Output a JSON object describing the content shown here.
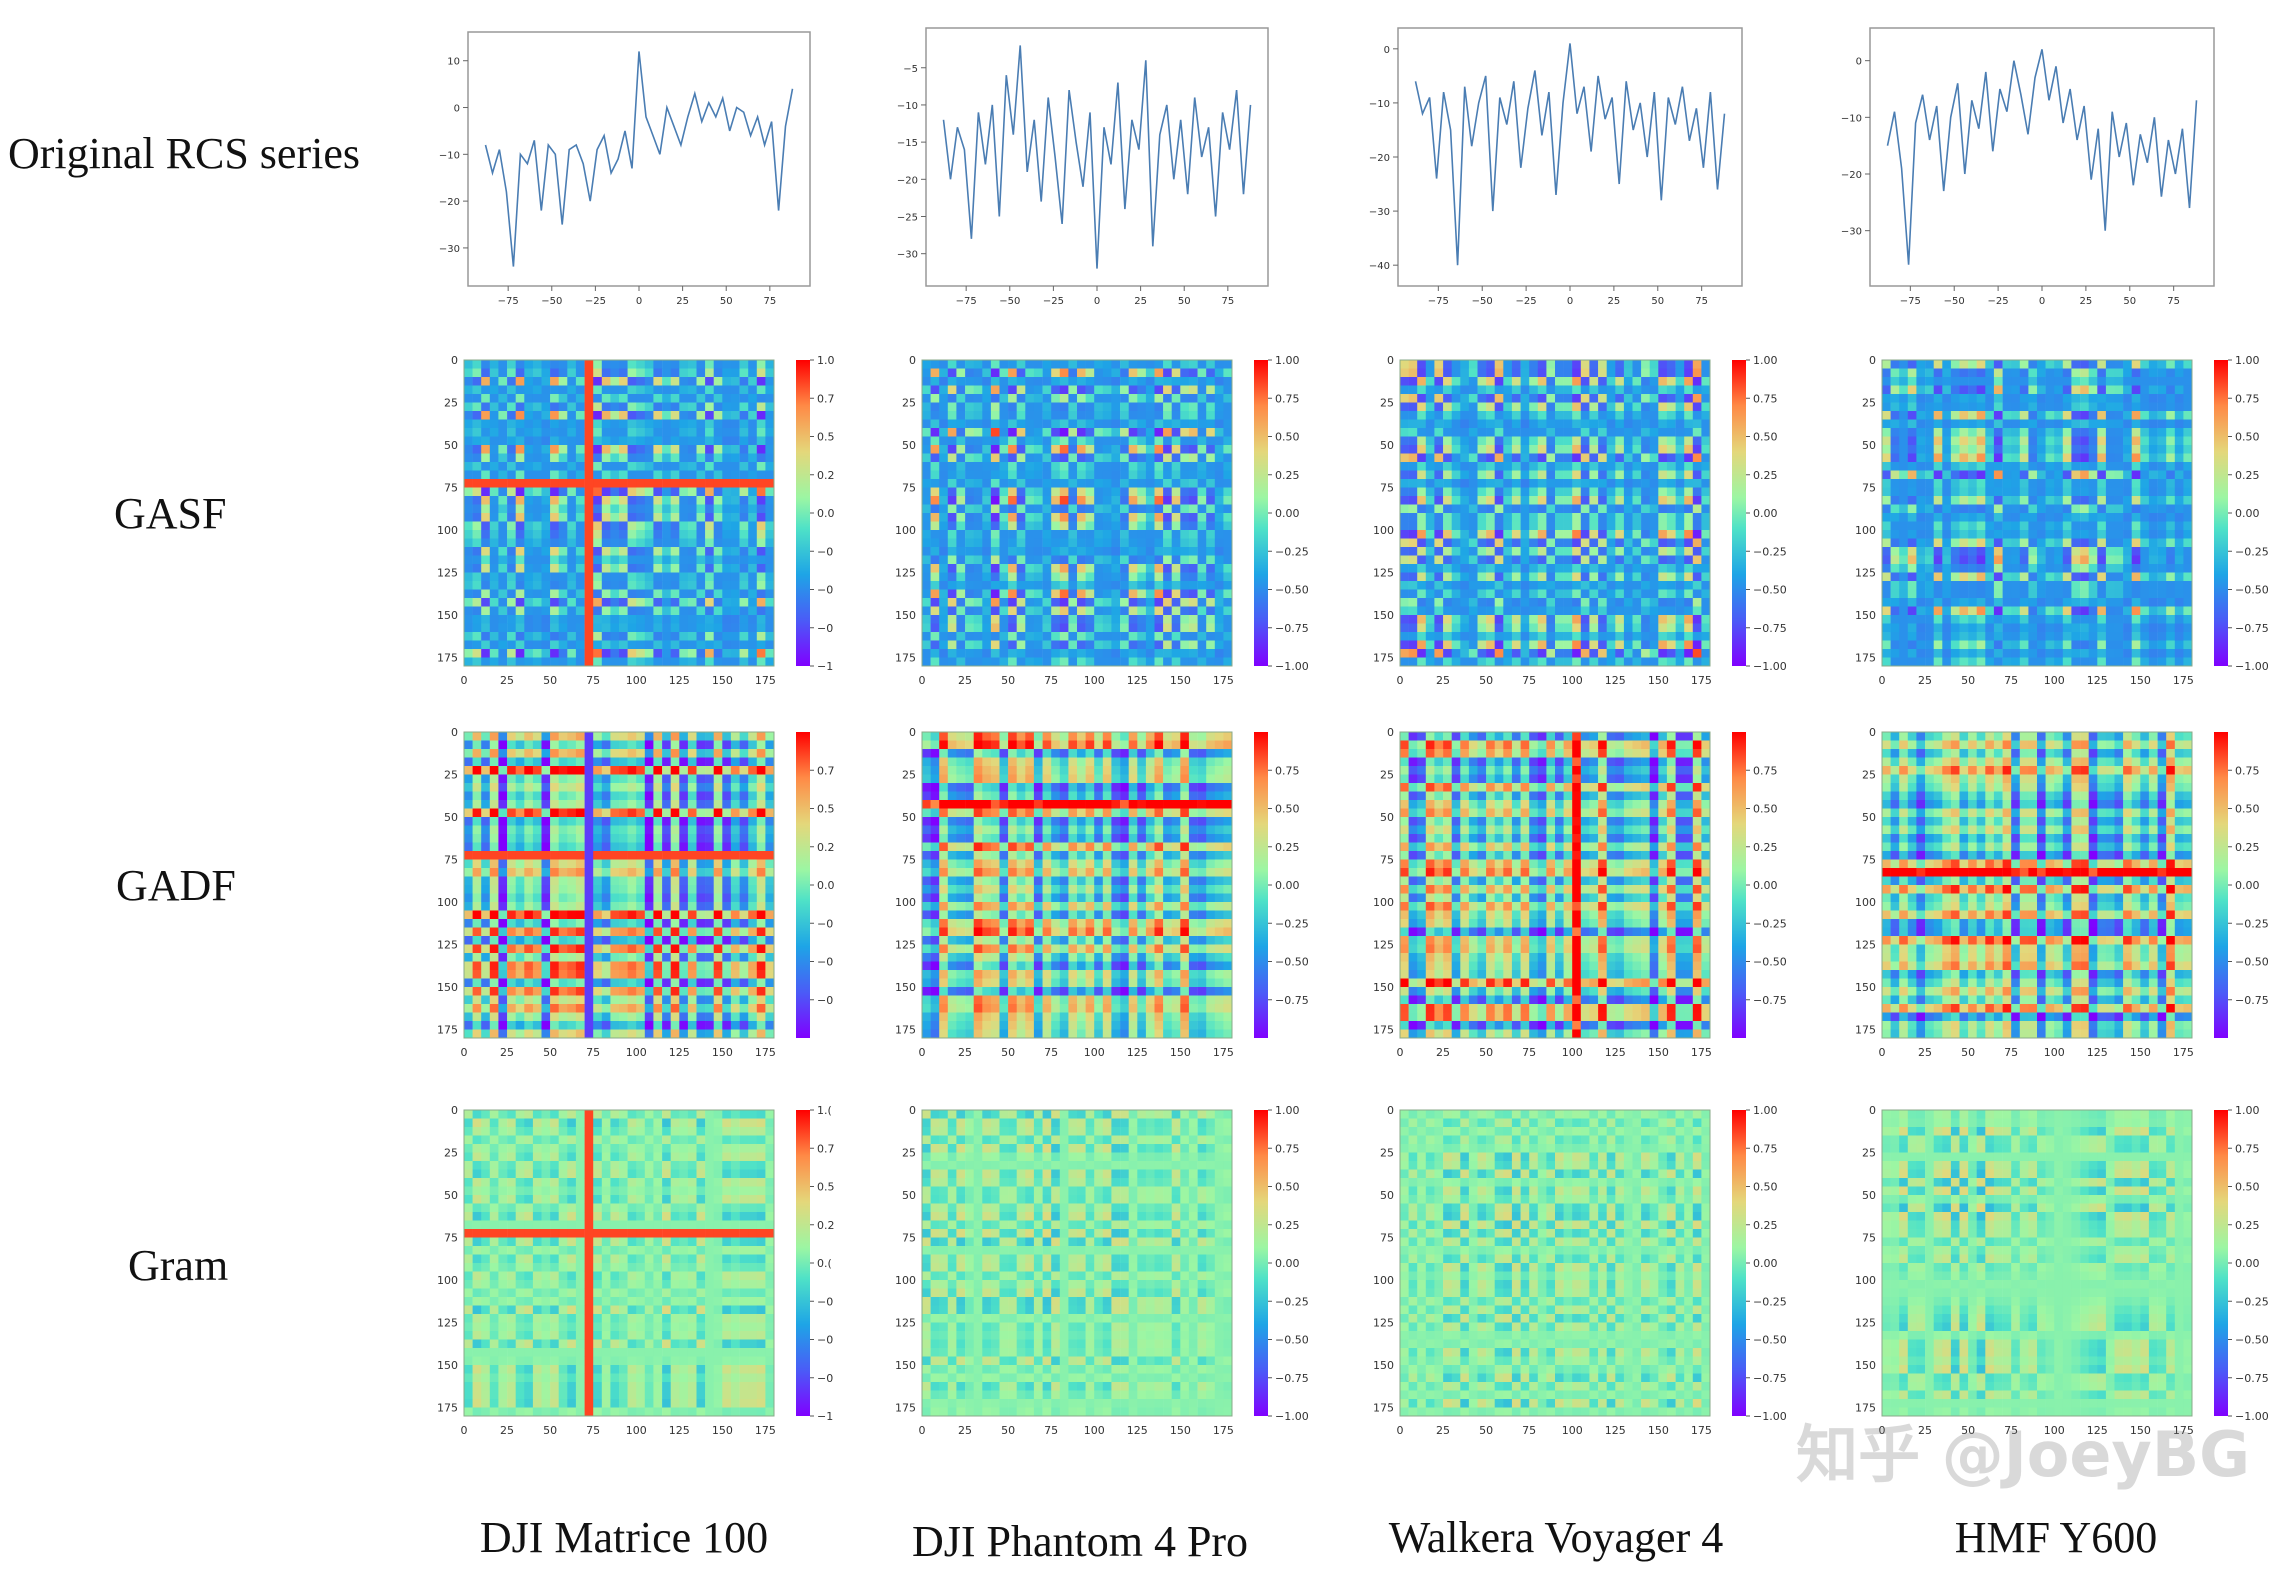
{
  "row_labels": [
    "Original RCS series",
    "GASF",
    "GADF",
    "Gram"
  ],
  "col_labels": [
    "DJI Matrice 100",
    "DJI Phantom 4 Pro",
    "Walkera Voyager 4",
    "HMF Y600"
  ],
  "watermark": "知乎 @JoeyBG",
  "colors": {
    "line": "#4a7db3",
    "colormap": "rainbow"
  },
  "chart_data": [
    {
      "type": "line",
      "row": "Original RCS series",
      "title": "",
      "xlabel": "",
      "ylabel": "",
      "panels": [
        {
          "name": "DJI Matrice 100",
          "xlim": [
            -90,
            90
          ],
          "xticks": [
            -75,
            -50,
            -25,
            0,
            25,
            50,
            75
          ],
          "yticks": [
            10,
            0,
            -10,
            -20,
            -30
          ],
          "ylim": [
            -36,
            14
          ],
          "x": [
            -88,
            -84,
            -80,
            -76,
            -72,
            -68,
            -64,
            -60,
            -56,
            -52,
            -48,
            -44,
            -40,
            -36,
            -32,
            -28,
            -24,
            -20,
            -16,
            -12,
            -8,
            -4,
            0,
            4,
            8,
            12,
            16,
            20,
            24,
            28,
            32,
            36,
            40,
            44,
            48,
            52,
            56,
            60,
            64,
            68,
            72,
            76,
            80,
            84,
            88
          ],
          "y": [
            -8,
            -14,
            -9,
            -18,
            -34,
            -10,
            -12,
            -7,
            -22,
            -8,
            -10,
            -25,
            -9,
            -8,
            -12,
            -20,
            -9,
            -6,
            -14,
            -11,
            -5,
            -13,
            12,
            -2,
            -6,
            -10,
            0,
            -4,
            -8,
            -2,
            3,
            -3,
            1,
            -2,
            2,
            -5,
            0,
            -1,
            -6,
            -2,
            -8,
            -3,
            -22,
            -4,
            4
          ]
        },
        {
          "name": "DJI Phantom 4 Pro",
          "xlim": [
            -90,
            90
          ],
          "xticks": [
            -75,
            -50,
            -25,
            0,
            25,
            50,
            75
          ],
          "yticks": [
            -5,
            -10,
            -15,
            -20,
            -25,
            -30
          ],
          "ylim": [
            -33,
            -1
          ],
          "x": [
            -88,
            -84,
            -80,
            -76,
            -72,
            -68,
            -64,
            -60,
            -56,
            -52,
            -48,
            -44,
            -40,
            -36,
            -32,
            -28,
            -24,
            -20,
            -16,
            -12,
            -8,
            -4,
            0,
            4,
            8,
            12,
            16,
            20,
            24,
            28,
            32,
            36,
            40,
            44,
            48,
            52,
            56,
            60,
            64,
            68,
            72,
            76,
            80,
            84,
            88
          ],
          "y": [
            -12,
            -20,
            -13,
            -16,
            -28,
            -11,
            -18,
            -10,
            -25,
            -6,
            -14,
            -2,
            -19,
            -12,
            -23,
            -9,
            -17,
            -26,
            -8,
            -15,
            -21,
            -11,
            -32,
            -13,
            -18,
            -7,
            -24,
            -12,
            -16,
            -4,
            -29,
            -14,
            -10,
            -20,
            -12,
            -22,
            -9,
            -17,
            -13,
            -25,
            -11,
            -16,
            -8,
            -22,
            -10
          ]
        },
        {
          "name": "Walkera Voyager 4",
          "xlim": [
            -90,
            90
          ],
          "xticks": [
            -75,
            -50,
            -25,
            0,
            25,
            50,
            75
          ],
          "yticks": [
            0,
            -10,
            -20,
            -30,
            -40
          ],
          "ylim": [
            -42,
            2
          ],
          "x": [
            -88,
            -84,
            -80,
            -76,
            -72,
            -68,
            -64,
            -60,
            -56,
            -52,
            -48,
            -44,
            -40,
            -36,
            -32,
            -28,
            -24,
            -20,
            -16,
            -12,
            -8,
            -4,
            0,
            4,
            8,
            12,
            16,
            20,
            24,
            28,
            32,
            36,
            40,
            44,
            48,
            52,
            56,
            60,
            64,
            68,
            72,
            76,
            80,
            84,
            88
          ],
          "y": [
            -6,
            -12,
            -9,
            -24,
            -8,
            -15,
            -40,
            -7,
            -18,
            -10,
            -5,
            -30,
            -9,
            -14,
            -6,
            -22,
            -11,
            -4,
            -16,
            -8,
            -27,
            -10,
            1,
            -12,
            -7,
            -19,
            -5,
            -13,
            -9,
            -25,
            -6,
            -15,
            -10,
            -20,
            -8,
            -28,
            -9,
            -14,
            -7,
            -17,
            -11,
            -22,
            -8,
            -26,
            -12
          ]
        },
        {
          "name": "HMF Y600",
          "xlim": [
            -90,
            90
          ],
          "xticks": [
            -75,
            -50,
            -25,
            0,
            25,
            50,
            75
          ],
          "yticks": [
            0,
            -10,
            -20,
            -30
          ],
          "ylim": [
            -38,
            4
          ],
          "x": [
            -88,
            -84,
            -80,
            -76,
            -72,
            -68,
            -64,
            -60,
            -56,
            -52,
            -48,
            -44,
            -40,
            -36,
            -32,
            -28,
            -24,
            -20,
            -16,
            -12,
            -8,
            -4,
            0,
            4,
            8,
            12,
            16,
            20,
            24,
            28,
            32,
            36,
            40,
            44,
            48,
            52,
            56,
            60,
            64,
            68,
            72,
            76,
            80,
            84,
            88
          ],
          "y": [
            -15,
            -9,
            -19,
            -36,
            -11,
            -6,
            -14,
            -8,
            -23,
            -10,
            -4,
            -20,
            -7,
            -12,
            -2,
            -16,
            -5,
            -9,
            0,
            -6,
            -13,
            -3,
            2,
            -7,
            -1,
            -11,
            -5,
            -14,
            -8,
            -21,
            -12,
            -30,
            -9,
            -17,
            -11,
            -22,
            -13,
            -18,
            -10,
            -24,
            -14,
            -20,
            -12,
            -26,
            -7
          ]
        }
      ]
    },
    {
      "type": "heatmap",
      "row": "GASF",
      "axis_ticks": [
        0,
        25,
        50,
        75,
        100,
        125,
        150,
        175
      ],
      "colorbar": {
        "DJI Matrice 100": [
          "1.0",
          "0.7",
          "0.5",
          "0.2",
          "0.0",
          "−0",
          "−0",
          "−0",
          "−1"
        ],
        "DJI Phantom 4 Pro": [
          "1.00",
          "0.75",
          "0.50",
          "0.25",
          "0.00",
          "−0.25",
          "−0.50",
          "−0.75",
          "−1.00"
        ],
        "Walkera Voyager 4": [
          "1.00",
          "0.75",
          "0.50",
          "0.25",
          "0.00",
          "−0.25",
          "−0.50",
          "−0.75",
          "−1.00"
        ],
        "HMF Y600": [
          "1.00",
          "0.75",
          "0.50",
          "0.25",
          "0.00",
          "−0.25",
          "−0.50",
          "−0.75",
          "−1.00"
        ]
      },
      "range": [
        -1,
        1
      ]
    },
    {
      "type": "heatmap",
      "row": "GADF",
      "axis_ticks": [
        0,
        25,
        50,
        75,
        100,
        125,
        150,
        175
      ],
      "colorbar": {
        "DJI Matrice 100": [
          "0.7",
          "0.5",
          "0.2",
          "0.0",
          "−0",
          "−0",
          "−0"
        ],
        "DJI Phantom 4 Pro": [
          "0.75",
          "0.50",
          "0.25",
          "0.00",
          "−0.25",
          "−0.50",
          "−0.75"
        ],
        "Walkera Voyager 4": [
          "0.75",
          "0.50",
          "0.25",
          "0.00",
          "−0.25",
          "−0.50",
          "−0.75"
        ],
        "HMF Y600": [
          "0.75",
          "0.50",
          "0.25",
          "0.00",
          "−0.25",
          "−0.50",
          "−0.75"
        ]
      },
      "range": [
        -1,
        1
      ]
    },
    {
      "type": "heatmap",
      "row": "Gram",
      "axis_ticks": [
        0,
        25,
        50,
        75,
        100,
        125,
        150,
        175
      ],
      "colorbar": {
        "DJI Matrice 100": [
          "1.(",
          "0.7",
          "0.5",
          "0.2",
          "0.(",
          "−0",
          "−0",
          "−0",
          "−1"
        ],
        "DJI Phantom 4 Pro": [
          "1.00",
          "0.75",
          "0.50",
          "0.25",
          "0.00",
          "−0.25",
          "−0.50",
          "−0.75",
          "−1.00"
        ],
        "Walkera Voyager 4": [
          "1.00",
          "0.75",
          "0.50",
          "0.25",
          "0.00",
          "−0.25",
          "−0.50",
          "−0.75",
          "−1.00"
        ],
        "HMF Y600": [
          "1.00",
          "0.75",
          "0.50",
          "0.25",
          "0.00",
          "−0.25",
          "−0.50",
          "−0.75",
          "−1.00"
        ]
      },
      "range": [
        -1,
        1
      ]
    }
  ]
}
